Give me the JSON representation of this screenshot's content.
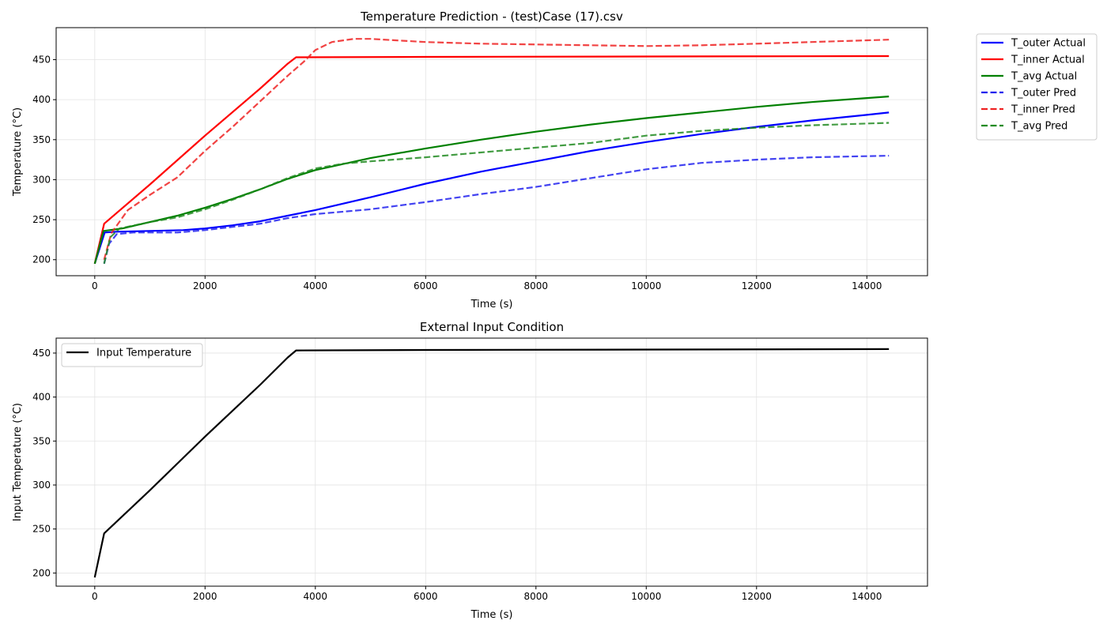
{
  "chart_data": [
    {
      "type": "line",
      "title": "Temperature Prediction - (test)Case (17).csv",
      "xlabel": "Time (s)",
      "ylabel": "Temperature (°C)",
      "xlim": [
        -700,
        15100
      ],
      "ylim": [
        180,
        490
      ],
      "xticks": [
        0,
        2000,
        4000,
        6000,
        8000,
        10000,
        12000,
        14000
      ],
      "yticks": [
        200,
        250,
        300,
        350,
        400,
        450
      ],
      "grid": true,
      "legend_placement": "outside right",
      "series": [
        {
          "name": "T_outer Actual",
          "color": "#0000ff",
          "style": "solid",
          "points": [
            [
              0,
              195
            ],
            [
              180,
              234
            ],
            [
              400,
              235
            ],
            [
              1000,
              236
            ],
            [
              1600,
              237
            ],
            [
              2000,
              239
            ],
            [
              2500,
              243
            ],
            [
              3000,
              248
            ],
            [
              3500,
              255
            ],
            [
              4000,
              262
            ],
            [
              5000,
              278
            ],
            [
              6000,
              295
            ],
            [
              7000,
              310
            ],
            [
              8000,
              323
            ],
            [
              9000,
              336
            ],
            [
              10000,
              347
            ],
            [
              11000,
              357
            ],
            [
              12000,
              366
            ],
            [
              13000,
              374
            ],
            [
              14000,
              381
            ],
            [
              14400,
              384
            ]
          ]
        },
        {
          "name": "T_inner Actual",
          "color": "#ff0000",
          "style": "solid",
          "points": [
            [
              0,
              195
            ],
            [
              170,
              245
            ],
            [
              1000,
              294
            ],
            [
              2000,
              355
            ],
            [
              3000,
              414
            ],
            [
              3500,
              445
            ],
            [
              3650,
              453
            ],
            [
              6000,
              453.5
            ],
            [
              10000,
              454
            ],
            [
              14400,
              454.5
            ]
          ]
        },
        {
          "name": "T_avg Actual",
          "color": "#008000",
          "style": "solid",
          "points": [
            [
              0,
              195
            ],
            [
              160,
              236
            ],
            [
              500,
              239
            ],
            [
              1000,
              247
            ],
            [
              1500,
              255
            ],
            [
              2000,
              265
            ],
            [
              2500,
              276
            ],
            [
              3000,
              288
            ],
            [
              3500,
              301
            ],
            [
              4000,
              312
            ],
            [
              5000,
              327
            ],
            [
              6000,
              339
            ],
            [
              7000,
              350
            ],
            [
              8000,
              360
            ],
            [
              9000,
              369
            ],
            [
              10000,
              377
            ],
            [
              11000,
              384
            ],
            [
              12000,
              391
            ],
            [
              13000,
              397
            ],
            [
              14000,
              402
            ],
            [
              14400,
              404
            ]
          ]
        },
        {
          "name": "T_outer Pred",
          "color": "#2222ee",
          "style": "dashed",
          "points": [
            [
              170,
              195
            ],
            [
              260,
              220
            ],
            [
              400,
              232
            ],
            [
              700,
              234
            ],
            [
              1000,
              234
            ],
            [
              1500,
              234
            ],
            [
              2000,
              237
            ],
            [
              2500,
              241
            ],
            [
              3000,
              245
            ],
            [
              3500,
              252
            ],
            [
              4000,
              257
            ],
            [
              5000,
              263
            ],
            [
              6000,
              272
            ],
            [
              7000,
              282
            ],
            [
              8000,
              291
            ],
            [
              9000,
              302
            ],
            [
              10000,
              313
            ],
            [
              11000,
              321
            ],
            [
              12000,
              325
            ],
            [
              13000,
              328
            ],
            [
              14400,
              330
            ]
          ]
        },
        {
          "name": "T_inner Pred",
          "color": "#ee2222",
          "style": "dashed",
          "points": [
            [
              170,
              200
            ],
            [
              300,
              233
            ],
            [
              600,
              262
            ],
            [
              1000,
              281
            ],
            [
              1500,
              303
            ],
            [
              2000,
              336
            ],
            [
              2500,
              366
            ],
            [
              3000,
              398
            ],
            [
              3500,
              430
            ],
            [
              3800,
              448
            ],
            [
              4000,
              462
            ],
            [
              4300,
              472
            ],
            [
              4700,
              476
            ],
            [
              5000,
              476
            ],
            [
              6000,
              472
            ],
            [
              7000,
              470
            ],
            [
              8000,
              469
            ],
            [
              9000,
              468
            ],
            [
              10000,
              467
            ],
            [
              11000,
              468
            ],
            [
              12000,
              470
            ],
            [
              13000,
              472
            ],
            [
              14400,
              475
            ]
          ]
        },
        {
          "name": "T_avg Pred",
          "color": "#228b22",
          "style": "dashed",
          "points": [
            [
              170,
              195
            ],
            [
              280,
              228
            ],
            [
              450,
              239
            ],
            [
              1000,
              247
            ],
            [
              1500,
              253
            ],
            [
              2000,
              263
            ],
            [
              2500,
              275
            ],
            [
              3000,
              288
            ],
            [
              3500,
              302
            ],
            [
              4000,
              314
            ],
            [
              4500,
              320
            ],
            [
              5000,
              323
            ],
            [
              6000,
              328
            ],
            [
              7000,
              334
            ],
            [
              8000,
              340
            ],
            [
              9000,
              346
            ],
            [
              10000,
              355
            ],
            [
              11000,
              361
            ],
            [
              12000,
              365
            ],
            [
              13000,
              368
            ],
            [
              14400,
              371
            ]
          ]
        }
      ]
    },
    {
      "type": "line",
      "title": "External Input Condition",
      "xlabel": "Time (s)",
      "ylabel": "Input Temperature (°C)",
      "xlim": [
        -700,
        15100
      ],
      "ylim": [
        185,
        467
      ],
      "xticks": [
        0,
        2000,
        4000,
        6000,
        8000,
        10000,
        12000,
        14000
      ],
      "yticks": [
        200,
        250,
        300,
        350,
        400,
        450
      ],
      "grid": true,
      "legend_placement": "upper left",
      "series": [
        {
          "name": "Input Temperature",
          "color": "#000000",
          "style": "solid",
          "points": [
            [
              0,
              195
            ],
            [
              170,
              245
            ],
            [
              1000,
              294
            ],
            [
              2000,
              355
            ],
            [
              3000,
              414
            ],
            [
              3500,
              445
            ],
            [
              3650,
              453
            ],
            [
              6000,
              453.5
            ],
            [
              10000,
              454
            ],
            [
              14400,
              454.5
            ]
          ]
        }
      ]
    }
  ]
}
